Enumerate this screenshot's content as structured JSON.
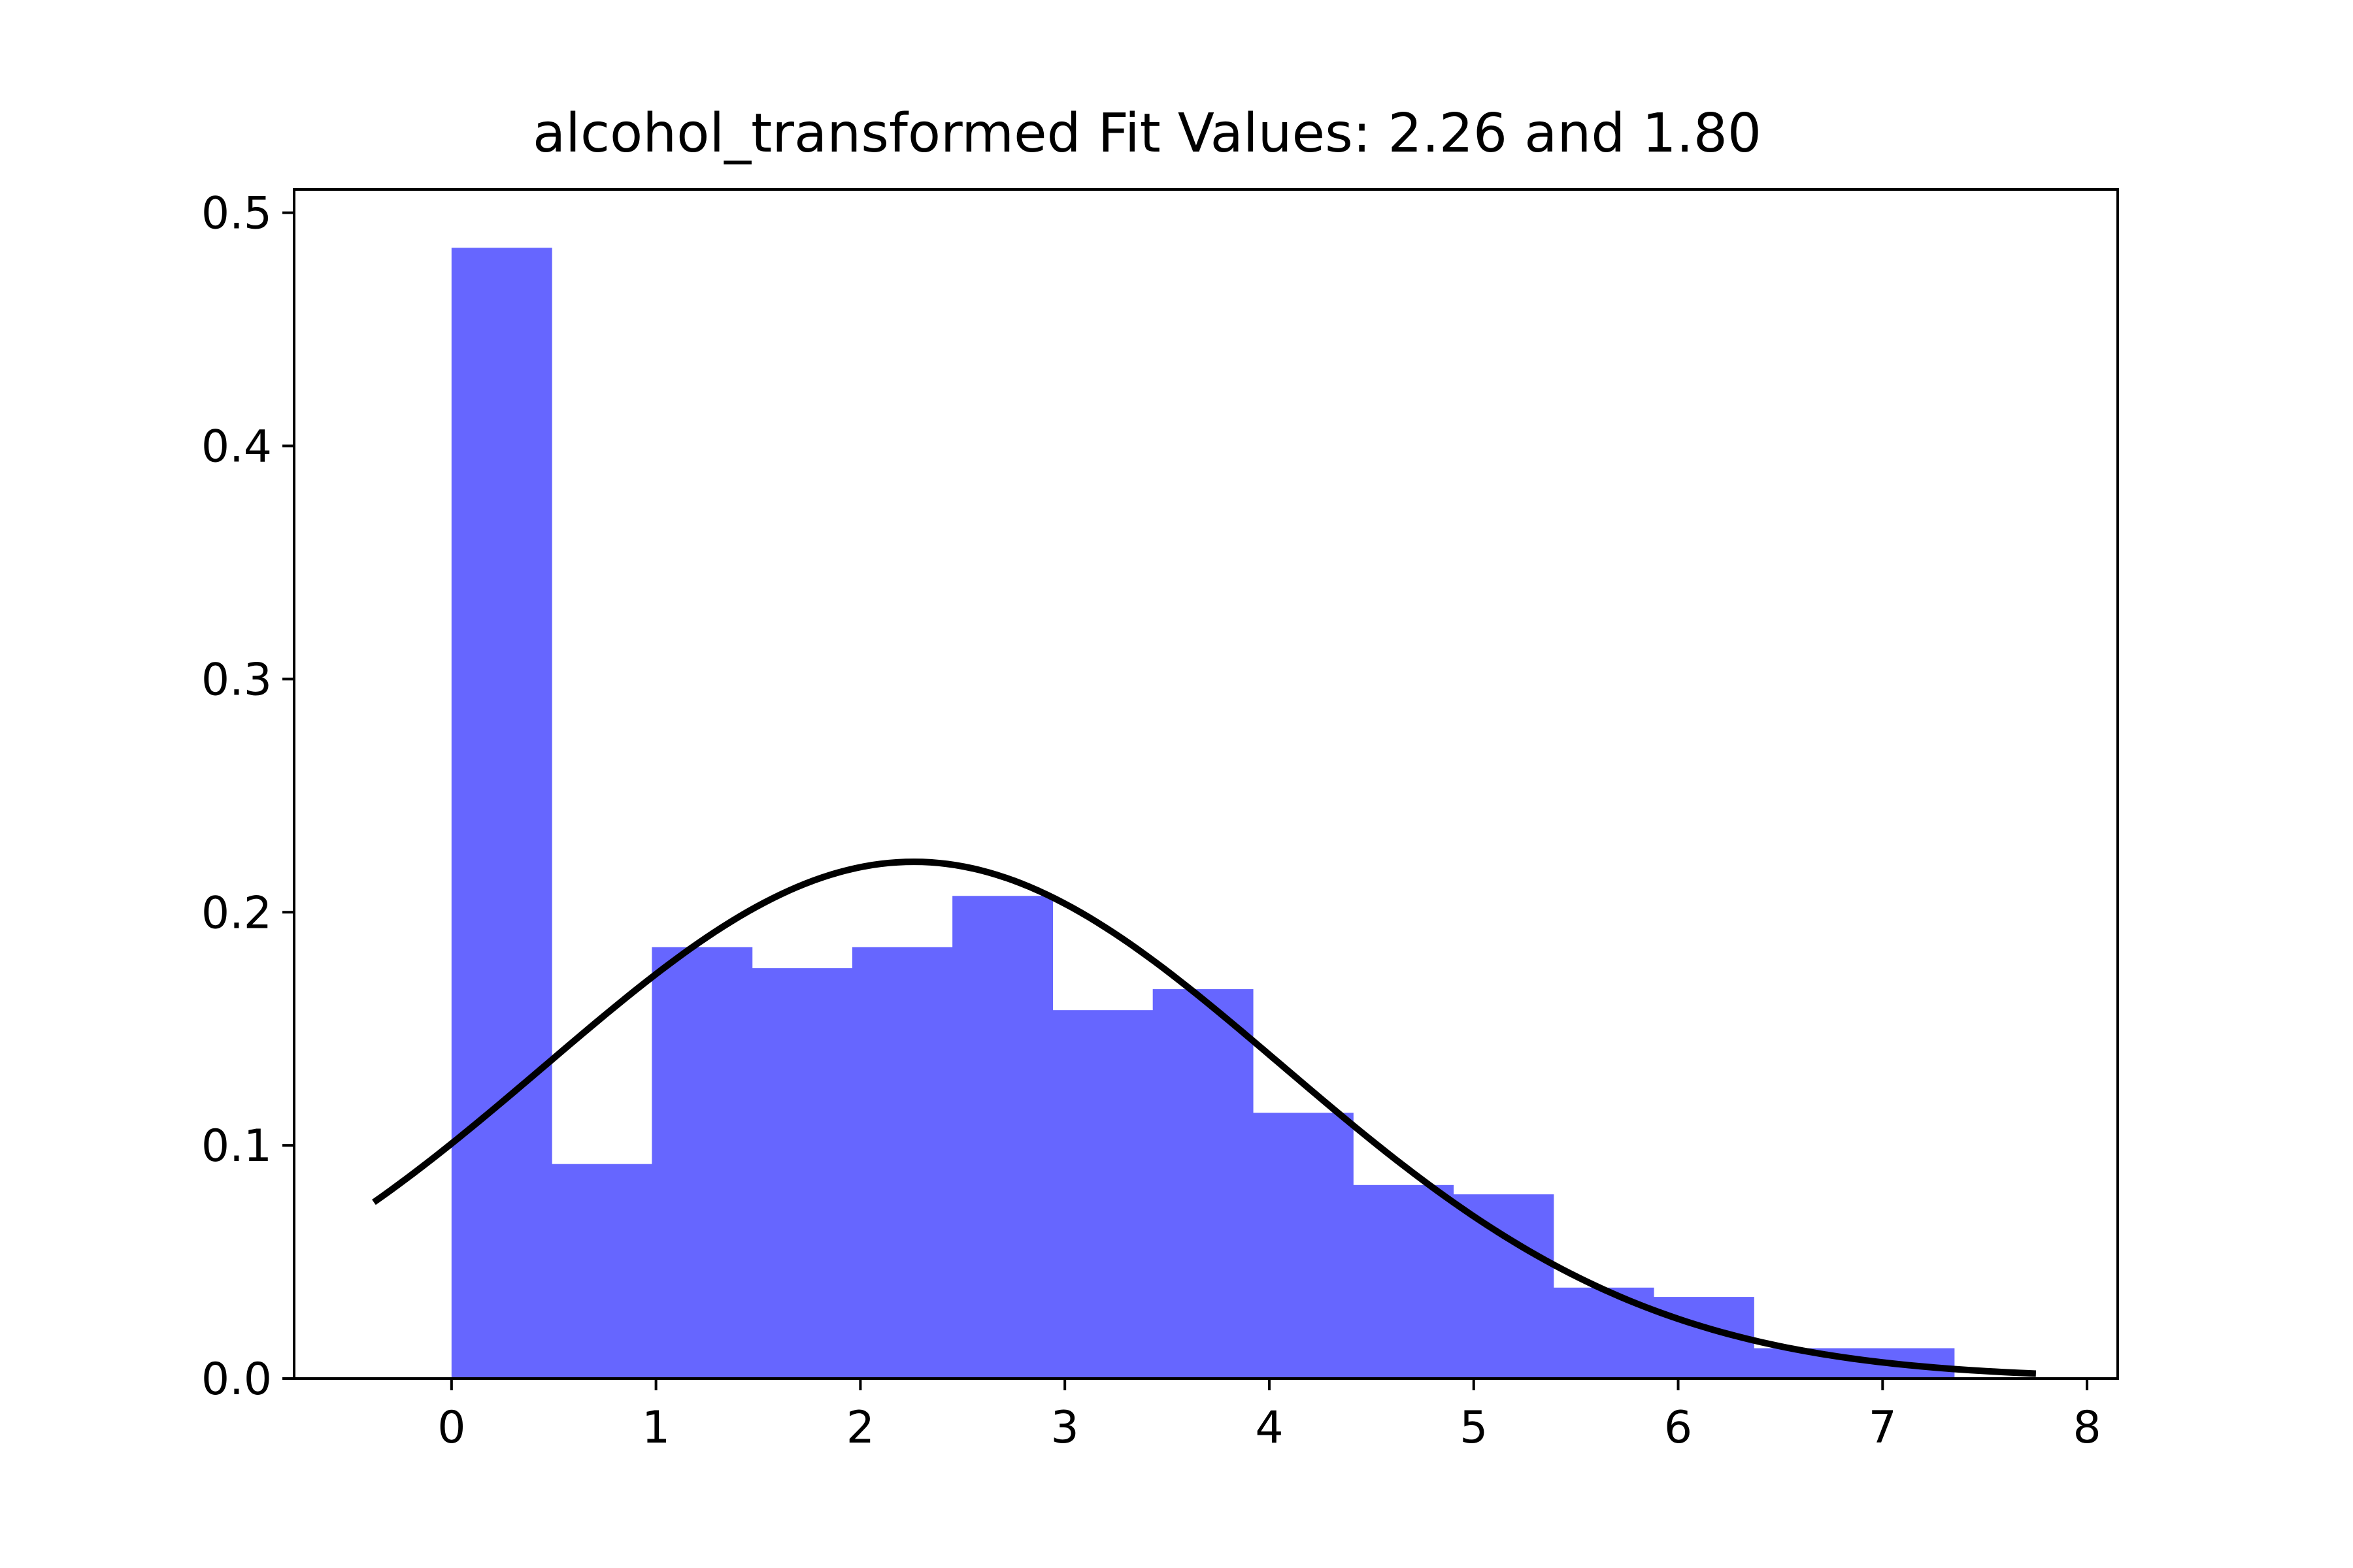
{
  "chart_data": {
    "type": "bar",
    "title": "alcohol_transformed Fit Values: 2.26 and 1.80",
    "xlabel": "",
    "ylabel": "",
    "xlim": [
      -0.77,
      8.15
    ],
    "ylim": [
      0,
      0.51
    ],
    "grid": false,
    "legend": "none",
    "x_ticks": [
      "0",
      "1",
      "2",
      "3",
      "4",
      "5",
      "6",
      "7",
      "8"
    ],
    "y_ticks": [
      "0.0",
      "0.1",
      "0.2",
      "0.3",
      "0.4",
      "0.5"
    ],
    "series": [
      {
        "kind": "histogram",
        "color": "#6666ff",
        "bins": [
          {
            "x0": 0.0,
            "x1": 0.49,
            "value": 0.485
          },
          {
            "x0": 0.49,
            "x1": 0.98,
            "value": 0.092
          },
          {
            "x0": 0.98,
            "x1": 1.47,
            "value": 0.185
          },
          {
            "x0": 1.47,
            "x1": 1.96,
            "value": 0.176
          },
          {
            "x0": 1.96,
            "x1": 2.45,
            "value": 0.185
          },
          {
            "x0": 2.45,
            "x1": 2.94,
            "value": 0.207
          },
          {
            "x0": 2.94,
            "x1": 3.43,
            "value": 0.158
          },
          {
            "x0": 3.43,
            "x1": 3.92,
            "value": 0.167
          },
          {
            "x0": 3.92,
            "x1": 4.41,
            "value": 0.114
          },
          {
            "x0": 4.41,
            "x1": 4.9,
            "value": 0.083
          },
          {
            "x0": 4.9,
            "x1": 5.39,
            "value": 0.079
          },
          {
            "x0": 5.39,
            "x1": 5.88,
            "value": 0.039
          },
          {
            "x0": 5.88,
            "x1": 6.37,
            "value": 0.035
          },
          {
            "x0": 6.37,
            "x1": 6.86,
            "value": 0.013
          },
          {
            "x0": 6.86,
            "x1": 7.35,
            "value": 0.013
          }
        ]
      },
      {
        "kind": "normal-fit-line",
        "color": "#000000",
        "mean": 2.26,
        "std": 1.8,
        "x_range": [
          -0.38,
          7.75
        ]
      }
    ]
  }
}
